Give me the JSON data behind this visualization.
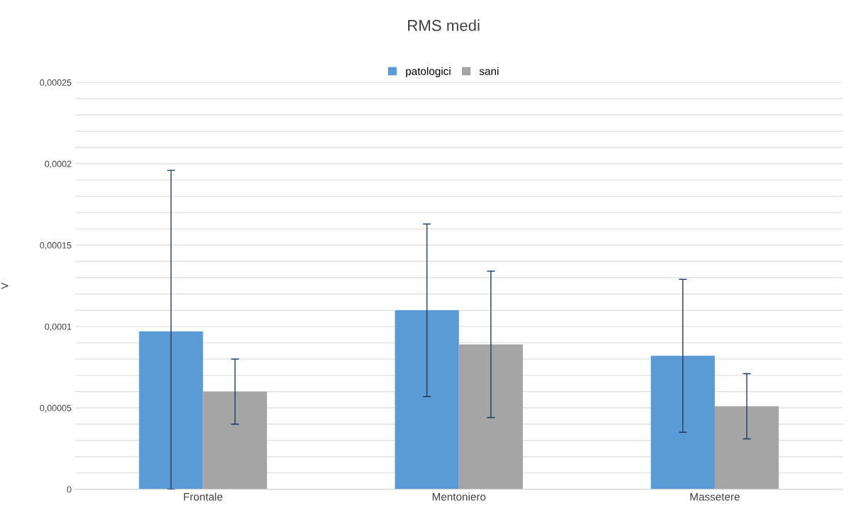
{
  "chart_data": {
    "type": "bar",
    "title": "RMS medi",
    "ylabel": "V",
    "categories": [
      "Frontale",
      "Mentoniero",
      "Massetere"
    ],
    "series": [
      {
        "name": "patologici",
        "color": "#5b9bd5",
        "values": [
          9.7e-05,
          0.00011,
          8.2e-05
        ],
        "errors": [
          [
            0,
            0.000196
          ],
          5.3e-05,
          4.7e-05
        ]
      },
      {
        "name": "sani",
        "color": "#a5a5a5",
        "values": [
          6e-05,
          8.9e-05,
          5.1e-05
        ],
        "errors": [
          2e-05,
          4.5e-05,
          2e-05
        ]
      }
    ],
    "ylim": [
      0,
      0.00025
    ],
    "yticks": [
      {
        "value": 0,
        "label": "0"
      },
      {
        "value": 1e-05,
        "label": null
      },
      {
        "value": 2e-05,
        "label": null
      },
      {
        "value": 3e-05,
        "label": null
      },
      {
        "value": 4e-05,
        "label": null
      },
      {
        "value": 5e-05,
        "label": "0,00005"
      },
      {
        "value": 6e-05,
        "label": null
      },
      {
        "value": 7e-05,
        "label": null
      },
      {
        "value": 8e-05,
        "label": null
      },
      {
        "value": 9e-05,
        "label": null
      },
      {
        "value": 0.0001,
        "label": "0,0001"
      },
      {
        "value": 0.00011,
        "label": null
      },
      {
        "value": 0.00012,
        "label": null
      },
      {
        "value": 0.00013,
        "label": null
      },
      {
        "value": 0.00014,
        "label": null
      },
      {
        "value": 0.00015,
        "label": "0,00015"
      },
      {
        "value": 0.00016,
        "label": null
      },
      {
        "value": 0.00017,
        "label": null
      },
      {
        "value": 0.00018,
        "label": null
      },
      {
        "value": 0.00019,
        "label": null
      },
      {
        "value": 0.0002,
        "label": "0,0002"
      },
      {
        "value": 0.00021,
        "label": null
      },
      {
        "value": 0.00022,
        "label": null
      },
      {
        "value": 0.00023,
        "label": null
      },
      {
        "value": 0.00024,
        "label": null
      },
      {
        "value": 0.00025,
        "label": "0,00025"
      }
    ],
    "grid": "y",
    "legend": "top"
  }
}
